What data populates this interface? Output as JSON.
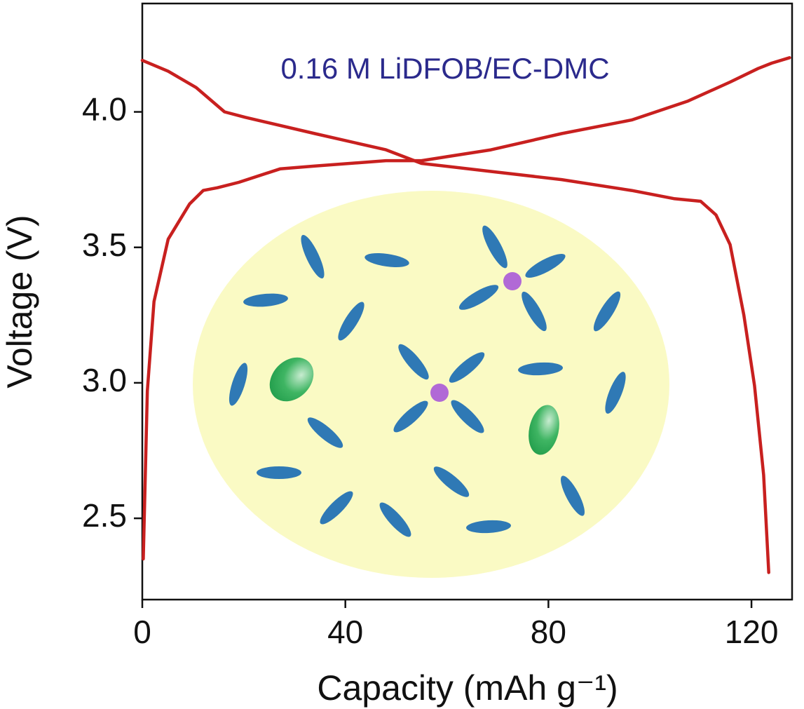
{
  "chart_data": {
    "type": "line",
    "annotation": "0.16 M LiDFOB/EC-DMC",
    "xlabel": "Capacity (mAh g⁻¹)",
    "ylabel": "Voltage (V)",
    "xlim": [
      0,
      128
    ],
    "ylim": [
      2.2,
      4.4
    ],
    "xticks": [
      0,
      40,
      80,
      120
    ],
    "yticks": [
      {
        "value": 2.5,
        "label": "2.5"
      },
      {
        "value": 3,
        "label": "3.0"
      },
      3.5,
      {
        "value": 4,
        "label": "4.0"
      }
    ],
    "series": [
      {
        "color": "#c8201f",
        "x": [
          0.2,
          1,
          2.3,
          5.1,
          9.3,
          12,
          14.8,
          19,
          27.2,
          34,
          48,
          55,
          68.7,
          82.6,
          96.4,
          107.5,
          115.8,
          121.3,
          124,
          127.5
        ],
        "values": [
          2.35,
          2.97,
          3.3,
          3.53,
          3.66,
          3.71,
          3.72,
          3.74,
          3.79,
          3.8,
          3.82,
          3.82,
          3.86,
          3.92,
          3.97,
          4.04,
          4.11,
          4.16,
          4.18,
          4.2
        ]
      },
      {
        "color": "#c8201f",
        "x": [
          0,
          5.1,
          10.6,
          16.2,
          20.3,
          34,
          48,
          55,
          68.7,
          82.6,
          96.4,
          104.7,
          110,
          113,
          115.8,
          118.5,
          120.6,
          122.4,
          123.4
        ],
        "values": [
          4.19,
          4.15,
          4.09,
          4.0,
          3.98,
          3.92,
          3.86,
          3.81,
          3.78,
          3.75,
          3.71,
          3.68,
          3.67,
          3.62,
          3.51,
          3.25,
          2.99,
          2.66,
          2.3
        ]
      }
    ]
  }
}
